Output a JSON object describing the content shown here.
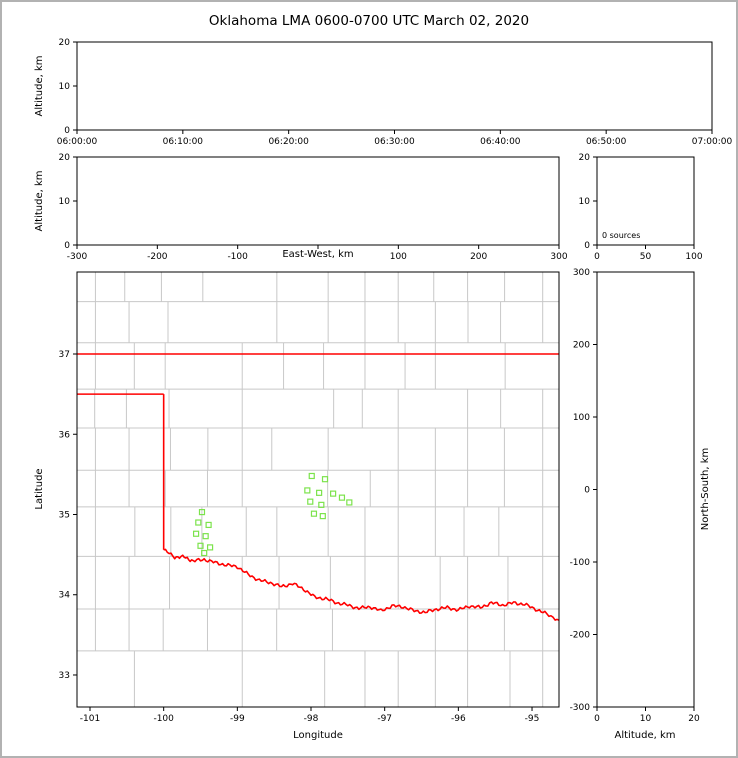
{
  "title": "Oklahoma LMA 0600-0700 UTC March 02, 2020",
  "colors": {
    "axis": "#000000",
    "county_line": "#c8c8c8",
    "state_border": "#ff0000",
    "station_marker": "#7ce34c",
    "background": "#ffffff",
    "frame": "#b2b2b2"
  },
  "chart_data": [
    {
      "id": "time_altitude",
      "type": "scatter",
      "xlabel": "",
      "ylabel": "Altitude, km",
      "x_type": "time",
      "xlim": [
        "06:00:00",
        "07:00:00"
      ],
      "ylim": [
        0,
        20
      ],
      "xticks": [
        "06:00:00",
        "06:10:00",
        "06:20:00",
        "06:30:00",
        "06:40:00",
        "06:50:00",
        "07:00:00"
      ],
      "yticks": [
        0,
        10,
        20
      ],
      "points": []
    },
    {
      "id": "eastwest_altitude",
      "type": "scatter",
      "xlabel": "East-West, km",
      "ylabel": "Altitude, km",
      "xlim": [
        -300,
        300
      ],
      "ylim": [
        0,
        20
      ],
      "xticks": [
        -300,
        -200,
        -100,
        0,
        100,
        200,
        300
      ],
      "xtick_labels": [
        "-300",
        "-200",
        "-100",
        "",
        "100",
        "200",
        "300"
      ],
      "yticks": [
        0,
        10,
        20
      ],
      "points": []
    },
    {
      "id": "altitude_source_histogram",
      "type": "line",
      "xlabel": "",
      "ylabel": "",
      "xlim": [
        0,
        100
      ],
      "ylim": [
        0,
        20
      ],
      "xticks": [
        0,
        50,
        100
      ],
      "yticks": [
        0,
        10,
        20
      ],
      "annotation": "0 sources",
      "points": []
    },
    {
      "id": "map",
      "type": "scatter",
      "xlabel": "Longitude",
      "ylabel": "Latitude",
      "xlim": [
        -101.1765,
        -94.6338
      ],
      "ylim": [
        32.601,
        38.022
      ],
      "xticks": [
        -101,
        -100,
        -99,
        -98,
        -97,
        -96,
        -95
      ],
      "yticks": [
        33,
        34,
        35,
        36,
        37
      ],
      "marker": "open-square",
      "stations_lon_lat": [
        [
          -99.48,
          35.03
        ],
        [
          -99.53,
          34.9
        ],
        [
          -99.39,
          34.87
        ],
        [
          -99.56,
          34.76
        ],
        [
          -99.43,
          34.73
        ],
        [
          -99.5,
          34.61
        ],
        [
          -99.37,
          34.59
        ],
        [
          -99.45,
          34.52
        ],
        [
          -97.99,
          35.48
        ],
        [
          -97.81,
          35.44
        ],
        [
          -98.05,
          35.3
        ],
        [
          -97.89,
          35.27
        ],
        [
          -98.01,
          35.16
        ],
        [
          -97.86,
          35.12
        ],
        [
          -97.7,
          35.26
        ],
        [
          -97.58,
          35.21
        ],
        [
          -97.48,
          35.15
        ],
        [
          -97.96,
          35.01
        ],
        [
          -97.84,
          34.98
        ]
      ],
      "state_border": {
        "north_lat37": [
          [
            -101.1765,
            37.0
          ],
          [
            -94.6338,
            37.0
          ]
        ],
        "panhandle_lat365": [
          [
            -101.1765,
            36.5
          ],
          [
            -100.0,
            36.5
          ]
        ],
        "west_lon100": [
          [
            -100.0,
            36.5
          ],
          [
            -100.0,
            34.56
          ]
        ],
        "red_river": [
          [
            -100.0,
            34.56
          ],
          [
            -99.85,
            34.47
          ],
          [
            -99.72,
            34.47
          ],
          [
            -99.6,
            34.42
          ],
          [
            -99.45,
            34.44
          ],
          [
            -99.3,
            34.4
          ],
          [
            -99.15,
            34.37
          ],
          [
            -99.0,
            34.35
          ],
          [
            -98.85,
            34.25
          ],
          [
            -98.7,
            34.18
          ],
          [
            -98.55,
            34.15
          ],
          [
            -98.4,
            34.1
          ],
          [
            -98.25,
            34.14
          ],
          [
            -98.1,
            34.07
          ],
          [
            -97.95,
            33.97
          ],
          [
            -97.8,
            33.95
          ],
          [
            -97.65,
            33.9
          ],
          [
            -97.5,
            33.87
          ],
          [
            -97.35,
            33.83
          ],
          [
            -97.2,
            33.85
          ],
          [
            -97.05,
            33.8
          ],
          [
            -96.9,
            33.86
          ],
          [
            -96.75,
            33.85
          ],
          [
            -96.6,
            33.8
          ],
          [
            -96.45,
            33.78
          ],
          [
            -96.3,
            33.82
          ],
          [
            -96.15,
            33.84
          ],
          [
            -96.0,
            33.81
          ],
          [
            -95.85,
            33.86
          ],
          [
            -95.7,
            33.84
          ],
          [
            -95.55,
            33.9
          ],
          [
            -95.4,
            33.87
          ],
          [
            -95.25,
            33.9
          ],
          [
            -95.1,
            33.88
          ],
          [
            -94.95,
            33.82
          ],
          [
            -94.8,
            33.76
          ],
          [
            -94.63,
            33.68
          ]
        ]
      }
    },
    {
      "id": "northsouth_altitude",
      "type": "scatter",
      "xlabel": "Altitude, km",
      "ylabel": "North-South, km",
      "xlim": [
        0,
        20
      ],
      "ylim": [
        -300,
        300
      ],
      "xticks": [
        0,
        10,
        20
      ],
      "yticks": [
        -300,
        -200,
        -100,
        0,
        100,
        200,
        300
      ],
      "points": []
    }
  ]
}
